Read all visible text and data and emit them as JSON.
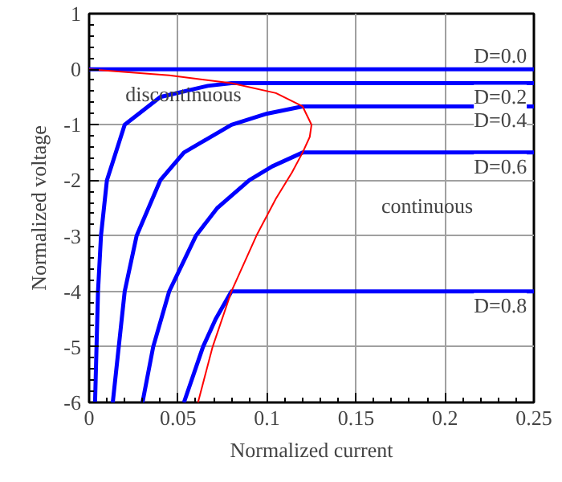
{
  "chart_data": {
    "type": "line",
    "xlabel": "Normalized current",
    "ylabel": "Normalized voltage",
    "xlim": [
      0,
      0.25
    ],
    "ylim": [
      -6,
      1
    ],
    "xticks": [
      0,
      0.05,
      0.1,
      0.15,
      0.2,
      0.25
    ],
    "yticks": [
      -6,
      -5,
      -4,
      -3,
      -2,
      -1,
      0,
      1
    ],
    "grid": true,
    "marker": "none",
    "line_style": "solid",
    "annotations": [
      "discontinuous",
      "continuous"
    ],
    "series": [
      {
        "name": "D=0.0",
        "color": "#0000ff",
        "x": [
          0,
          0.25
        ],
        "values": [
          0,
          0
        ]
      },
      {
        "name": "D=0.2",
        "color": "#0000ff",
        "x": [
          0.00333,
          0.005,
          0.00667,
          0.01,
          0.02,
          0.04,
          0.0667,
          0.08,
          0.25
        ],
        "values": [
          -6,
          -4,
          -3,
          -2,
          -1,
          -0.5,
          -0.3,
          -0.25,
          -0.25
        ]
      },
      {
        "name": "D=0.4",
        "color": "#0000ff",
        "x": [
          0.0133,
          0.02,
          0.0267,
          0.04,
          0.0533,
          0.08,
          0.1,
          0.12,
          0.25
        ],
        "values": [
          -6,
          -4,
          -3,
          -2,
          -1.5,
          -1,
          -0.8,
          -0.67,
          -0.67
        ]
      },
      {
        "name": "D=0.6",
        "color": "#0000ff",
        "x": [
          0.03,
          0.036,
          0.045,
          0.06,
          0.072,
          0.09,
          0.1029,
          0.12,
          0.25
        ],
        "values": [
          -6,
          -5,
          -4,
          -3,
          -2.5,
          -2,
          -1.75,
          -1.5,
          -1.5
        ]
      },
      {
        "name": "D=0.8",
        "color": "#0000ff",
        "x": [
          0.0533,
          0.064,
          0.0711,
          0.08,
          0.25
        ],
        "values": [
          -6,
          -5,
          -4.5,
          -4,
          -4
        ]
      },
      {
        "color": "#ff0000",
        "x": [
          0,
          0.045,
          0.08,
          0.105,
          0.12,
          0.125,
          0.124,
          0.12,
          0.114,
          0.105,
          0.094,
          0.08,
          0.0694,
          0.0612
        ],
        "values": [
          0,
          -0.11,
          -0.25,
          -0.43,
          -0.67,
          -1,
          -1.22,
          -1.5,
          -1.86,
          -2.33,
          -3,
          -4,
          -5,
          -6
        ]
      }
    ]
  }
}
